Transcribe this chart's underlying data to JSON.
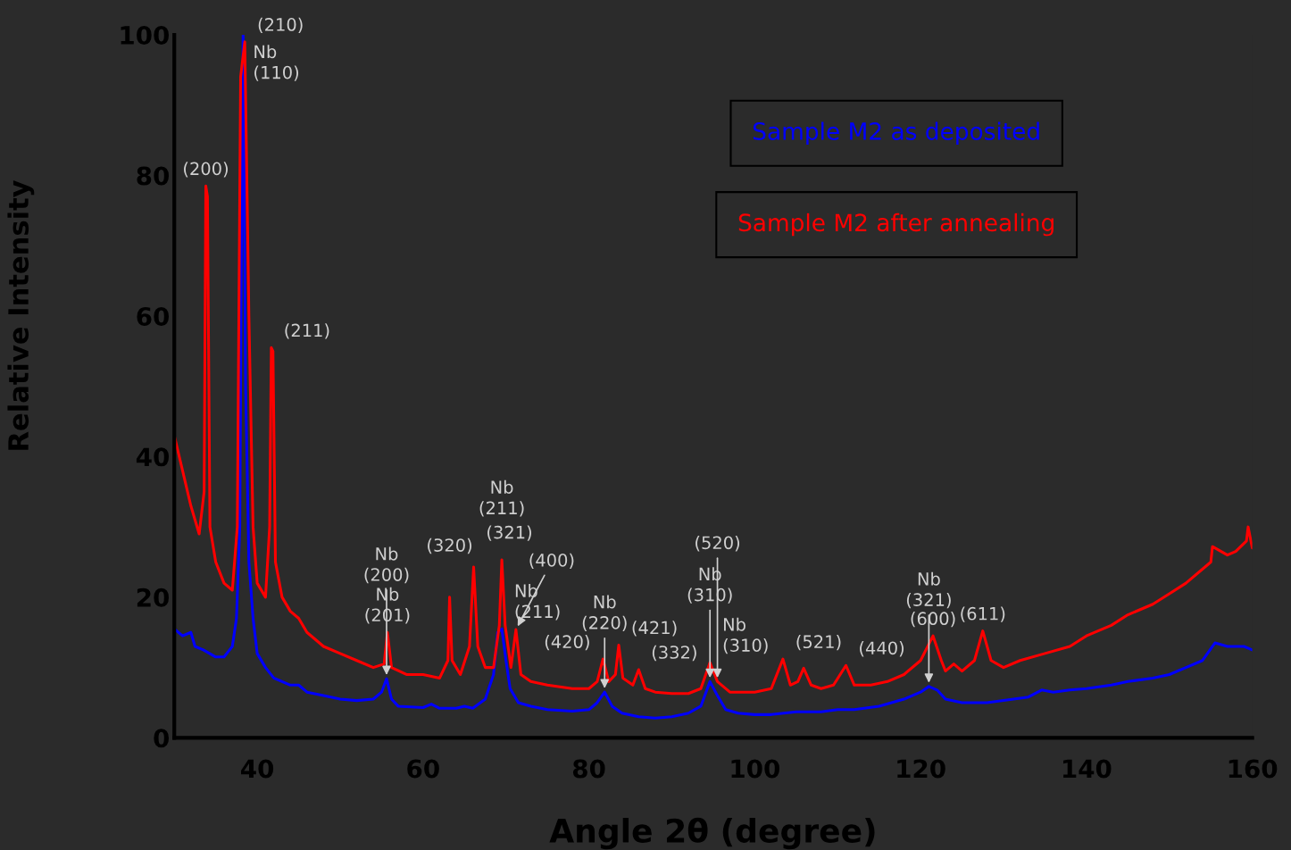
{
  "chart_data": {
    "type": "line",
    "xlabel": "Angle 2θ (degree)",
    "ylabel": "Relative Intensity",
    "xlim": [
      30,
      160
    ],
    "xticks": [
      40,
      60,
      80,
      100,
      120,
      140,
      160
    ],
    "ylim": [
      0,
      100
    ],
    "yticks": [
      0,
      20,
      40,
      60,
      80,
      100
    ],
    "grid": false,
    "legend": "top right",
    "marker": "none",
    "line_style": "solid",
    "series": [
      {
        "name": "Sample M2 as deposited",
        "color": "#0000ff",
        "x": [
          30,
          31,
          32,
          32.5,
          33.5,
          35,
          36,
          37,
          37.5,
          37.9,
          38.1,
          38.3,
          38.6,
          39,
          39.5,
          40,
          41,
          42,
          44,
          45,
          46,
          48,
          50,
          52,
          54,
          55,
          55.6,
          56.2,
          57,
          60,
          61,
          62,
          64,
          65,
          66,
          67.5,
          68.5,
          69,
          69.5,
          70,
          70.5,
          71.5,
          73,
          75,
          78,
          80,
          81,
          81.9,
          82.8,
          84,
          86,
          88,
          90,
          92,
          93.5,
          94.6,
          95.5,
          96.5,
          98,
          100,
          102,
          105,
          108,
          110,
          112,
          115,
          118,
          120,
          121,
          122,
          123,
          125,
          128,
          130,
          133,
          134.6,
          136,
          138,
          140,
          143,
          145,
          148,
          150,
          152,
          154,
          155.5,
          157,
          159,
          160
        ],
        "values": [
          15.5,
          14.5,
          15,
          13,
          12.5,
          11.5,
          11.5,
          13,
          17,
          30,
          70,
          100,
          50,
          25,
          17,
          12,
          10,
          8.5,
          7.5,
          7.5,
          6.5,
          6,
          5.5,
          5.3,
          5.5,
          6.5,
          8.4,
          5.5,
          4.5,
          4.3,
          4.8,
          4.2,
          4.2,
          4.5,
          4.2,
          5.5,
          9,
          15,
          15.5,
          11,
          7,
          5,
          4.5,
          4,
          3.8,
          4,
          5,
          6.5,
          4.5,
          3.5,
          3,
          2.8,
          3,
          3.5,
          4.5,
          8,
          6,
          4,
          3.5,
          3.3,
          3.3,
          3.7,
          3.7,
          4,
          4,
          4.5,
          5.5,
          6.5,
          7.3,
          6.8,
          5.5,
          5,
          5,
          5.3,
          5.8,
          6.8,
          6.5,
          6.8,
          7,
          7.5,
          8,
          8.5,
          9,
          10,
          11,
          13.5,
          13,
          13,
          12.5
        ]
      },
      {
        "name": "Sample M2 after annealing",
        "color": "#ff0000",
        "x": [
          30,
          31,
          32,
          33,
          33.6,
          33.8,
          34.0,
          34.3,
          35,
          36,
          37,
          37.6,
          38.0,
          38.5,
          39,
          39.5,
          40,
          41,
          41.5,
          41.7,
          41.9,
          42.2,
          43,
          44,
          45,
          46,
          48,
          50,
          52,
          54,
          55.3,
          55.7,
          56.2,
          58,
          60,
          62,
          63,
          63.2,
          63.5,
          64.5,
          65.6,
          66.1,
          66.6,
          67.5,
          68.5,
          69.2,
          69.5,
          69.9,
          70.6,
          71.2,
          71.8,
          73,
          75,
          78,
          80,
          81,
          81.7,
          82.4,
          83.2,
          83.6,
          84.1,
          85.3,
          86,
          86.8,
          88,
          90,
          92,
          93.5,
          94.6,
          95.5,
          97,
          100,
          102,
          103.4,
          104.3,
          105.2,
          105.9,
          106.8,
          108,
          109.5,
          111,
          112,
          114,
          116,
          118,
          120,
          121.5,
          122.5,
          123,
          124,
          125,
          126.5,
          127.5,
          128.5,
          130,
          132,
          135,
          138,
          140,
          143,
          145,
          148,
          150,
          152,
          155,
          155.2,
          157,
          158,
          159.3,
          159.5,
          160
        ],
        "values": [
          43,
          38,
          33,
          29,
          35,
          78.5,
          77,
          30,
          25,
          22,
          21,
          30,
          94,
          99,
          60,
          30,
          22,
          20,
          30,
          55.5,
          55,
          25,
          20,
          18,
          17,
          15,
          13,
          12,
          11,
          10,
          10.5,
          15,
          10,
          9,
          9,
          8.5,
          11,
          20,
          11,
          9,
          13,
          24.3,
          13,
          10,
          10,
          16,
          25.3,
          16,
          10,
          15.4,
          9,
          8,
          7.5,
          7,
          7,
          8,
          11.2,
          8,
          9,
          13.2,
          8.5,
          7.5,
          9.7,
          7,
          6.5,
          6.3,
          6.3,
          7,
          10.7,
          8,
          6.5,
          6.5,
          7,
          11.2,
          7.5,
          8,
          9.9,
          7.5,
          7,
          7.5,
          10.3,
          7.5,
          7.5,
          8,
          9,
          11,
          14.5,
          11,
          9.5,
          10.5,
          9.5,
          11,
          15.2,
          11,
          10,
          11,
          12,
          13,
          14.5,
          16,
          17.5,
          19,
          20.5,
          22,
          25,
          27.2,
          26,
          26.5,
          28,
          30,
          27
        ]
      }
    ],
    "annotations": [
      {
        "text": "(200)",
        "x": 33.8,
        "y": 78.5
      },
      {
        "text": "Nb\n(110)",
        "x": 38.3,
        "y": 100
      },
      {
        "text": "(210)",
        "x": 38.5,
        "y": 99
      },
      {
        "text": "(211)",
        "x": 41.7,
        "y": 55.5
      },
      {
        "text": "Nb\n(201)",
        "x": 55.7,
        "y": 15
      },
      {
        "text": "Nb\n(200)",
        "x": 55.6,
        "y": 8.4
      },
      {
        "text": "(320)",
        "x": 63.2,
        "y": 20
      },
      {
        "text": "(321)",
        "x": 66.1,
        "y": 24.3
      },
      {
        "text": "Nb\n(211)",
        "x": 69.5,
        "y": 25.3
      },
      {
        "text": "Nb\n(211)",
        "x": 69.5,
        "y": 15.5
      },
      {
        "text": "(400)",
        "x": 71.2,
        "y": 15.4
      },
      {
        "text": "(420)",
        "x": 81.7,
        "y": 11.2
      },
      {
        "text": "Nb\n(220)",
        "x": 81.9,
        "y": 6.5
      },
      {
        "text": "(421)",
        "x": 83.6,
        "y": 13.2
      },
      {
        "text": "(332)",
        "x": 86,
        "y": 9.7
      },
      {
        "text": "Nb\n(310)",
        "x": 94.6,
        "y": 10.7
      },
      {
        "text": "Nb\n(310)",
        "x": 94.6,
        "y": 8
      },
      {
        "text": "(520)",
        "x": 95.5,
        "y": 8
      },
      {
        "text": "(521)",
        "x": 103.4,
        "y": 11.2
      },
      {
        "text": "(440)",
        "x": 111,
        "y": 10.3
      },
      {
        "text": "(600)",
        "x": 121.5,
        "y": 14.5
      },
      {
        "text": "Nb\n(321)",
        "x": 121,
        "y": 7.3
      },
      {
        "text": "(611)",
        "x": 127.5,
        "y": 15.2
      }
    ]
  }
}
